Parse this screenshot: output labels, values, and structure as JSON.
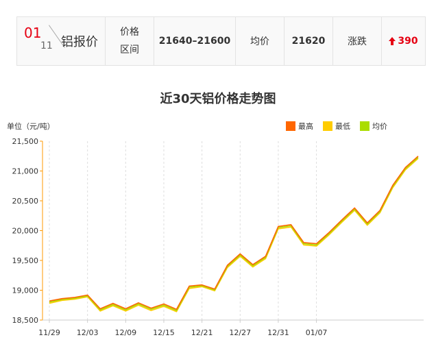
{
  "price_bar": {
    "month": "01",
    "day": "11",
    "title": "铝报价",
    "range_label": "价格区间",
    "range_value": "21640–21600",
    "avg_label": "均价",
    "avg_value": "21620",
    "change_label": "涨跌",
    "change_value": "390",
    "change_arrow": "arrow-up-icon"
  },
  "chart_data": {
    "type": "line",
    "title": "近30天铝价格走势图",
    "ylabel": "单位（元/吨）",
    "ylim": [
      18500,
      21500
    ],
    "yticks": [
      "18,500",
      "19,000",
      "19,500",
      "20,000",
      "20,500",
      "21,000",
      "21,500"
    ],
    "ytick_values": [
      18500,
      19000,
      19500,
      20000,
      20500,
      21000,
      21500
    ],
    "xtick_labels": [
      "11/29",
      "12/03",
      "12/09",
      "12/15",
      "12/21",
      "12/27",
      "12/31",
      "01/07"
    ],
    "xtick_index": [
      0,
      3,
      6,
      9,
      12,
      15,
      18,
      21
    ],
    "grid": true,
    "legend_placement": "top-right",
    "series": [
      {
        "name": "最高",
        "color": "#ff6600",
        "values": [
          18820,
          18860,
          18880,
          18920,
          18690,
          18780,
          18690,
          18790,
          18700,
          18770,
          18680,
          19070,
          19090,
          19020,
          19420,
          19610,
          19430,
          19570,
          20070,
          20100,
          19800,
          19780,
          19970,
          20180,
          20380,
          20130,
          20340,
          20760,
          21060,
          21250
        ]
      },
      {
        "name": "最低",
        "color": "#ffcc00",
        "values": [
          18780,
          18830,
          18850,
          18890,
          18650,
          18740,
          18650,
          18750,
          18660,
          18730,
          18640,
          19030,
          19060,
          18990,
          19380,
          19570,
          19390,
          19530,
          20030,
          20060,
          19760,
          19740,
          19930,
          20140,
          20340,
          20090,
          20300,
          20720,
          21020,
          21210
        ]
      },
      {
        "name": "均价",
        "color": "#aadd00",
        "values": [
          18800,
          18845,
          18865,
          18905,
          18670,
          18760,
          18670,
          18770,
          18680,
          18750,
          18660,
          19050,
          19075,
          19005,
          19400,
          19590,
          19410,
          19550,
          20050,
          20080,
          19780,
          19760,
          19950,
          20160,
          20360,
          20110,
          20320,
          20740,
          21040,
          21230
        ]
      }
    ]
  }
}
